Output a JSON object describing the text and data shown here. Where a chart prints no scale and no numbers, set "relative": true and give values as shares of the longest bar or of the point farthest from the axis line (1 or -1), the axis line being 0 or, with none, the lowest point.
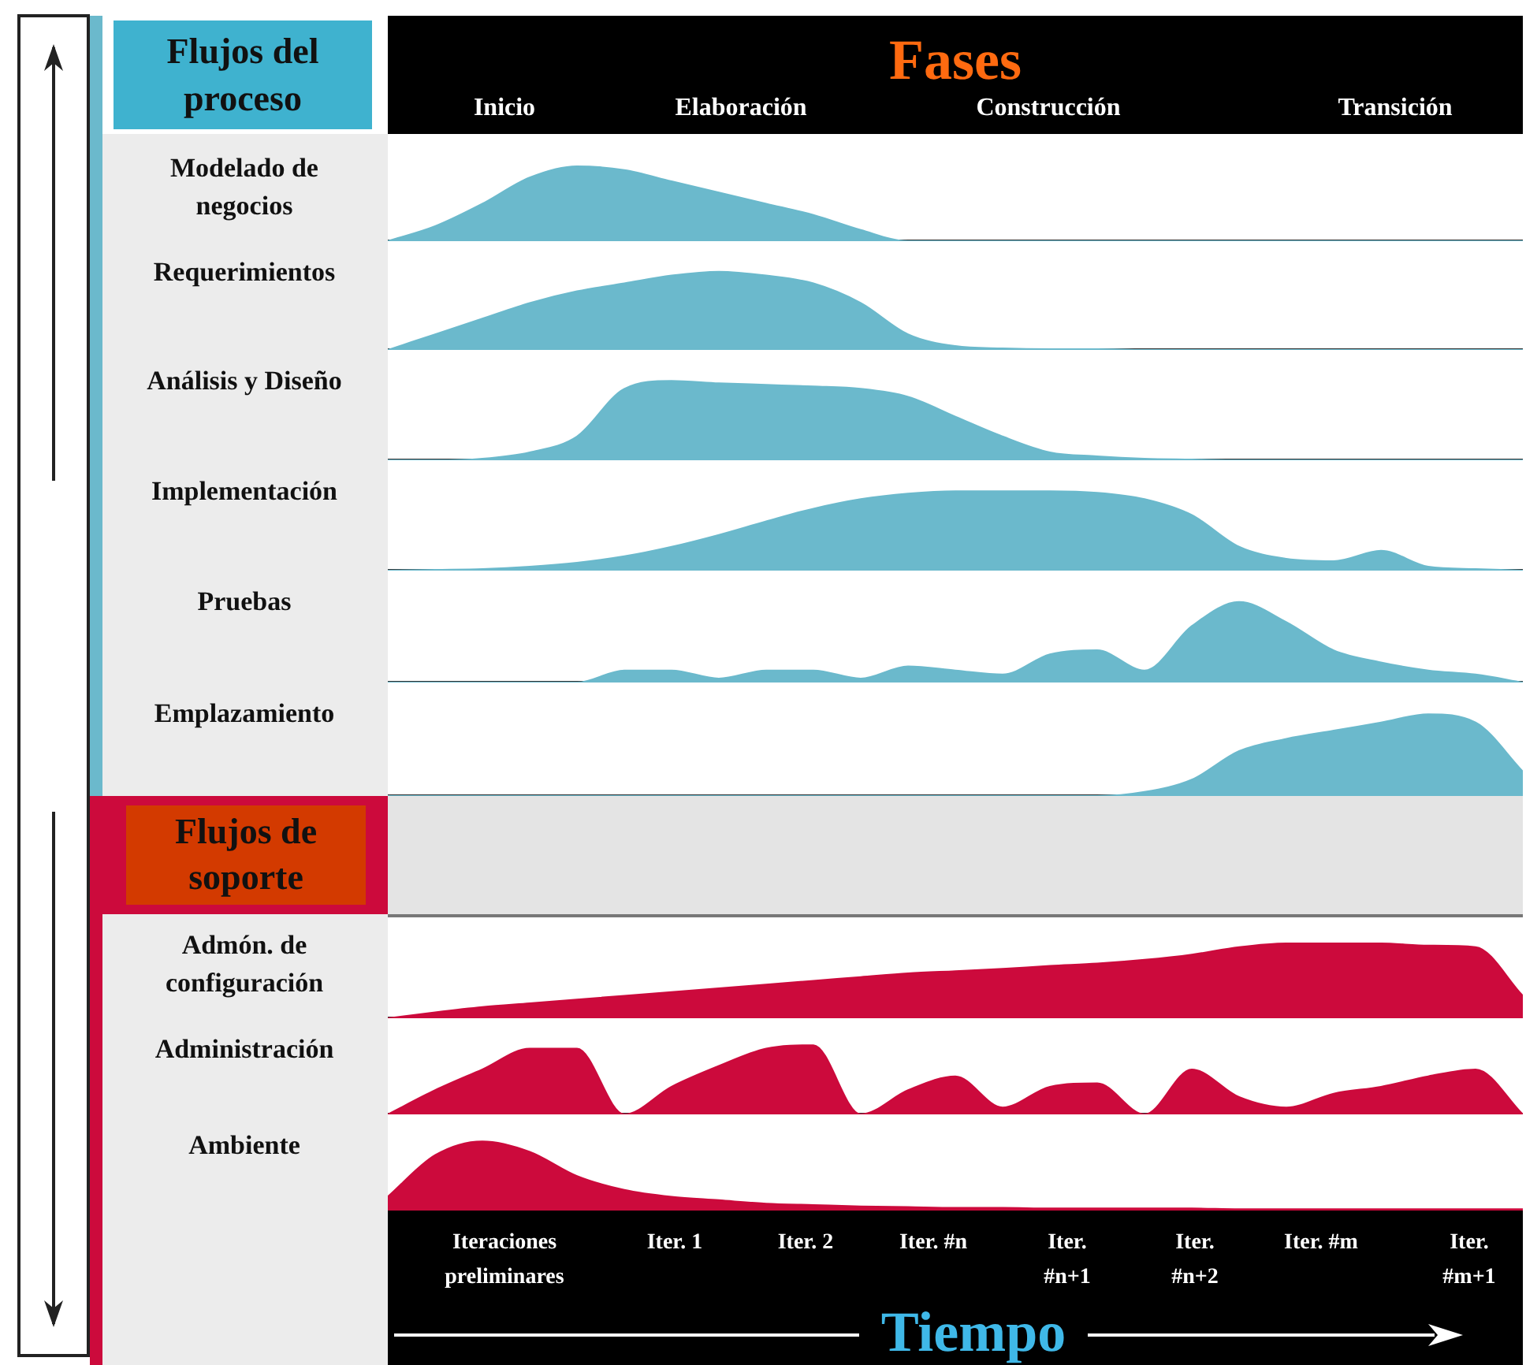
{
  "chart_data": [
    {
      "type": "other",
      "title": "Fases",
      "annotations": [
        "Flujos del proceso",
        "Inicio",
        "Elaboración",
        "Construcción",
        "Transición"
      ]
    },
    {
      "type": "area",
      "title": "Modelado de negocios",
      "relative": true,
      "tick_labels": false,
      "color": "#6bb9cc",
      "categories": [
        null,
        null,
        null,
        null,
        null,
        null,
        null,
        null,
        null,
        null,
        null,
        null,
        null,
        null,
        null,
        null,
        null,
        null,
        null,
        null,
        null,
        null,
        null,
        null,
        null
      ],
      "values": [
        0,
        0.2,
        0.5,
        0.85,
        1,
        0.95,
        0.8,
        0.65,
        0.5,
        0.35,
        0.15,
        0,
        0,
        0,
        0,
        0,
        0,
        0,
        0,
        0,
        0,
        0,
        0,
        0,
        0
      ]
    },
    {
      "type": "area",
      "title": "Requerimientos",
      "relative": true,
      "tick_labels": false,
      "color": "#6bb9cc",
      "categories": [
        null,
        null,
        null,
        null,
        null,
        null,
        null,
        null,
        null,
        null,
        null,
        null,
        null,
        null,
        null,
        null,
        null,
        null,
        null,
        null,
        null,
        null,
        null,
        null,
        null
      ],
      "values": [
        0,
        0.2,
        0.4,
        0.6,
        0.75,
        0.85,
        0.95,
        1,
        0.95,
        0.85,
        0.6,
        0.2,
        0.05,
        0.02,
        0.01,
        0.01,
        0,
        0,
        0,
        0,
        0,
        0,
        0,
        0,
        0
      ]
    },
    {
      "type": "area",
      "title": "Análisis y Diseño",
      "relative": true,
      "tick_labels": false,
      "color": "#6bb9cc",
      "categories": [
        null,
        null,
        null,
        null,
        null,
        null,
        null,
        null,
        null,
        null,
        null,
        null,
        null,
        null,
        null,
        null,
        null,
        null,
        null,
        null,
        null,
        null,
        null,
        null,
        null
      ],
      "values": [
        0,
        0,
        0.02,
        0.1,
        0.3,
        0.9,
        1,
        0.97,
        0.95,
        0.93,
        0.9,
        0.8,
        0.55,
        0.3,
        0.1,
        0.05,
        0.02,
        0.01,
        0,
        0,
        0,
        0,
        0,
        0,
        0
      ]
    },
    {
      "type": "area",
      "title": "Implementación",
      "relative": true,
      "tick_labels": false,
      "color": "#6bb9cc",
      "categories": [
        null,
        null,
        null,
        null,
        null,
        null,
        null,
        null,
        null,
        null,
        null,
        null,
        null,
        null,
        null,
        null,
        null,
        null,
        null,
        null,
        null,
        null,
        null,
        null,
        null
      ],
      "values": [
        0,
        0.01,
        0.02,
        0.05,
        0.1,
        0.18,
        0.3,
        0.45,
        0.62,
        0.78,
        0.9,
        0.97,
        1,
        1,
        1,
        0.98,
        0.9,
        0.7,
        0.3,
        0.15,
        0.12,
        0.25,
        0.05,
        0.02,
        0
      ]
    },
    {
      "type": "area",
      "title": "Pruebas",
      "relative": true,
      "tick_labels": false,
      "color": "#6bb9cc",
      "categories": [
        null,
        null,
        null,
        null,
        null,
        null,
        null,
        null,
        null,
        null,
        null,
        null,
        null,
        null,
        null,
        null,
        null,
        null,
        null,
        null,
        null,
        null,
        null,
        null,
        null
      ],
      "values": [
        0,
        0,
        0,
        0,
        0,
        0.15,
        0.15,
        0.05,
        0.15,
        0.15,
        0.05,
        0.2,
        0.15,
        0.1,
        0.35,
        0.4,
        0.15,
        0.7,
        1,
        0.75,
        0.4,
        0.25,
        0.15,
        0.1,
        0
      ]
    },
    {
      "type": "area",
      "title": "Emplazamiento",
      "relative": true,
      "tick_labels": false,
      "color": "#6bb9cc",
      "categories": [
        null,
        null,
        null,
        null,
        null,
        null,
        null,
        null,
        null,
        null,
        null,
        null,
        null,
        null,
        null,
        null,
        null,
        null,
        null,
        null,
        null,
        null,
        null,
        null,
        null
      ],
      "values": [
        0,
        0,
        0,
        0,
        0,
        0,
        0,
        0,
        0,
        0,
        0,
        0,
        0,
        0,
        0,
        0,
        0.05,
        0.2,
        0.55,
        0.7,
        0.8,
        0.9,
        1,
        0.9,
        0.3
      ]
    },
    {
      "type": "other",
      "title": "Flujos de soporte"
    },
    {
      "type": "area",
      "title": "Admón. de configuración",
      "relative": true,
      "tick_labels": false,
      "color": "#cc0a3c",
      "categories": [
        null,
        null,
        null,
        null,
        null,
        null,
        null,
        null,
        null,
        null,
        null,
        null,
        null,
        null,
        null,
        null,
        null,
        null,
        null,
        null,
        null,
        null,
        null,
        null,
        null
      ],
      "values": [
        0,
        0.08,
        0.15,
        0.2,
        0.25,
        0.3,
        0.35,
        0.4,
        0.45,
        0.5,
        0.55,
        0.6,
        0.63,
        0.66,
        0.7,
        0.73,
        0.78,
        0.85,
        0.95,
        1,
        1,
        1,
        0.97,
        0.95,
        0.3
      ]
    },
    {
      "type": "area",
      "title": "Administración",
      "relative": true,
      "tick_labels": false,
      "color": "#cc0a3c",
      "categories": [
        null,
        null,
        null,
        null,
        null,
        null,
        null,
        null,
        null,
        null,
        null,
        null,
        null,
        null,
        null,
        null,
        null,
        null,
        null,
        null,
        null,
        null,
        null,
        null,
        null
      ],
      "values": [
        0,
        0.35,
        0.65,
        0.95,
        0.95,
        0,
        0.4,
        0.7,
        0.95,
        1,
        0,
        0.35,
        0.55,
        0.1,
        0.4,
        0.45,
        0,
        0.65,
        0.25,
        0.1,
        0.3,
        0.4,
        0.55,
        0.65,
        0
      ]
    },
    {
      "type": "area",
      "title": "Ambiente",
      "relative": true,
      "tick_labels": false,
      "color": "#cc0a3c",
      "categories": [
        null,
        null,
        null,
        null,
        null,
        null,
        null,
        null,
        null,
        null,
        null,
        null,
        null,
        null,
        null,
        null,
        null,
        null,
        null,
        null,
        null,
        null,
        null,
        null,
        null
      ],
      "values": [
        0.2,
        0.8,
        1,
        0.85,
        0.5,
        0.3,
        0.2,
        0.15,
        0.1,
        0.08,
        0.06,
        0.05,
        0.04,
        0.04,
        0.03,
        0.03,
        0.03,
        0.03,
        0.02,
        0.02,
        0.02,
        0.02,
        0.02,
        0.02,
        0.02
      ]
    },
    {
      "type": "other",
      "xlabel": "Tiempo",
      "annotations": [
        "Iteraciones preliminares",
        "Iter. 1",
        "Iter. 2",
        "Iter. #n",
        "Iter. #n+1",
        "Iter. #n+2",
        "Iter. #m",
        "Iter. #m+1"
      ]
    }
  ]
}
